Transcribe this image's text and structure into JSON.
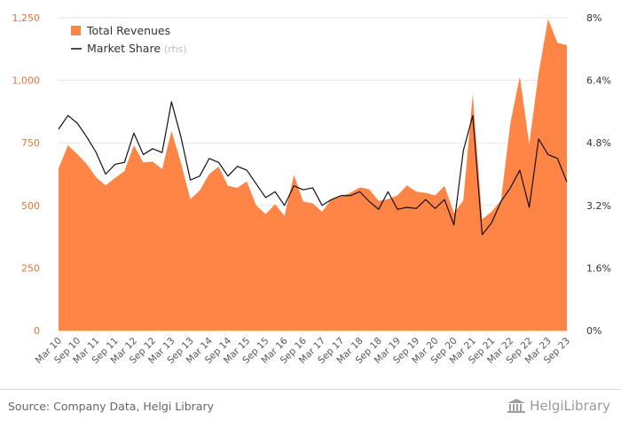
{
  "chart_data": {
    "type": "area+line",
    "x": [
      "Mar 10",
      "Jun 10",
      "Sep 10",
      "Dec 10",
      "Mar 11",
      "Jun 11",
      "Sep 11",
      "Dec 11",
      "Mar 12",
      "Jun 12",
      "Sep 12",
      "Dec 12",
      "Mar 13",
      "Jun 13",
      "Sep 13",
      "Dec 13",
      "Mar 14",
      "Jun 14",
      "Sep 14",
      "Dec 14",
      "Mar 15",
      "Jun 15",
      "Sep 15",
      "Dec 15",
      "Mar 16",
      "Jun 16",
      "Sep 16",
      "Dec 16",
      "Mar 17",
      "Jun 17",
      "Sep 17",
      "Dec 17",
      "Mar 18",
      "Jun 18",
      "Sep 18",
      "Dec 18",
      "Mar 19",
      "Jun 19",
      "Sep 19",
      "Dec 19",
      "Mar 20",
      "Jun 20",
      "Sep 20",
      "Dec 20",
      "Mar 21",
      "Jun 21",
      "Sep 21",
      "Dec 21",
      "Mar 22",
      "Jun 22",
      "Sep 22",
      "Dec 22",
      "Mar 23",
      "Jun 23",
      "Sep 23"
    ],
    "x_tick_labels": [
      "Mar 10",
      "Sep 10",
      "Mar 11",
      "Sep 11",
      "Mar 12",
      "Sep 12",
      "Mar 13",
      "Sep 13",
      "Mar 14",
      "Sep 14",
      "Mar 15",
      "Sep 15",
      "Mar 16",
      "Sep 16",
      "Mar 17",
      "Sep 17",
      "Mar 18",
      "Sep 18",
      "Mar 19",
      "Sep 19",
      "Mar 20",
      "Sep 20",
      "Mar 21",
      "Sep 21",
      "Mar 22",
      "Sep 22",
      "Mar 23",
      "Sep 23"
    ],
    "series": [
      {
        "name": "Total Revenues",
        "axis": "left",
        "kind": "area",
        "color": "#ff8547",
        "values": [
          648,
          740,
          705,
          665,
          612,
          580,
          610,
          637,
          740,
          672,
          675,
          645,
          798,
          670,
          525,
          560,
          625,
          655,
          578,
          570,
          596,
          500,
          465,
          505,
          458,
          622,
          515,
          508,
          475,
          525,
          535,
          550,
          572,
          565,
          518,
          525,
          540,
          580,
          555,
          550,
          540,
          578,
          470,
          520,
          945,
          445,
          475,
          520,
          830,
          1015,
          745,
          1030,
          1245,
          1150,
          1140
        ]
      },
      {
        "name": "Market Share",
        "name_suffix": "(rhs)",
        "axis": "right",
        "kind": "line",
        "color": "#111111",
        "values": [
          5.15,
          5.5,
          5.3,
          4.95,
          4.55,
          4.0,
          4.25,
          4.3,
          5.05,
          4.5,
          4.65,
          4.55,
          5.85,
          4.95,
          3.85,
          3.95,
          4.4,
          4.3,
          3.95,
          4.2,
          4.1,
          3.75,
          3.4,
          3.55,
          3.2,
          3.7,
          3.6,
          3.65,
          3.2,
          3.35,
          3.45,
          3.45,
          3.55,
          3.3,
          3.1,
          3.55,
          3.1,
          3.15,
          3.12,
          3.35,
          3.12,
          3.35,
          2.7,
          4.6,
          5.5,
          2.45,
          2.75,
          3.3,
          3.65,
          4.1,
          3.15,
          4.9,
          4.5,
          4.4,
          3.8
        ]
      }
    ],
    "y_left": {
      "min": 0,
      "max": 1250,
      "ticks": [
        0,
        250,
        500,
        750,
        "1,000",
        "1,250"
      ]
    },
    "y_right": {
      "min": 0,
      "max": 8,
      "ticks": [
        "0%",
        "1.6%",
        "3.2%",
        "4.8%",
        "6.4%",
        "8%"
      ]
    },
    "grid": true,
    "legend_position": "top-left"
  },
  "footer": {
    "source": "Source: Company Data, Helgi Library",
    "brand": "HelgiLibrary"
  },
  "colors": {
    "area": "#ff8547",
    "line": "#111111",
    "left_axis_text": "#e8743b",
    "grid": "#e6e6e6"
  }
}
